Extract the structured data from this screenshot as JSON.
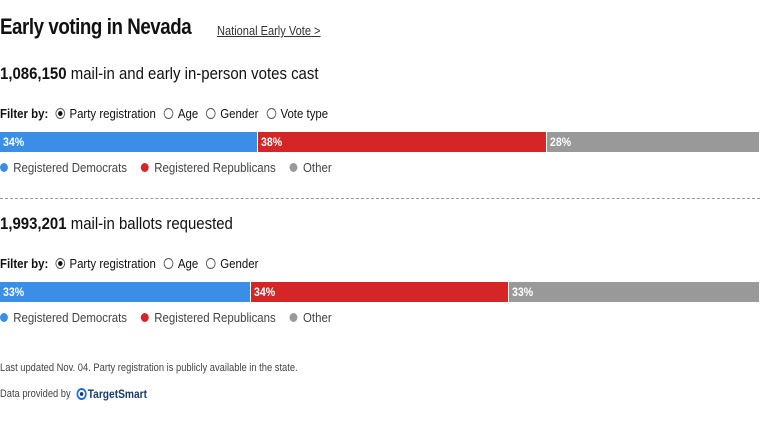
{
  "title": "Early voting in Nevada",
  "link": "National Early Vote",
  "footer": "Last updated Nov. 04. Party registration is publicly available in the state.",
  "source_prefix": "Data provided by",
  "source_logo": "TargetSmart",
  "chart_data": [
    {
      "type": "stacked-bar",
      "title": "1,086,150",
      "subtitle": "mail-in and early in-person votes cast",
      "filter_label": "Filter by:",
      "filters": [
        "Party registration",
        "Age",
        "Gender",
        "Vote type"
      ],
      "selected_filter": 0,
      "series": [
        {
          "name": "Registered Democrats",
          "color": "#3a8ee6",
          "values": [
            34
          ],
          "value_labels": [
            "34%"
          ]
        },
        {
          "name": "Registered Republicans",
          "color": "#d42626",
          "values": [
            38
          ],
          "value_labels": [
            "38%"
          ]
        },
        {
          "name": "Other",
          "color": "#999999",
          "values": [
            28
          ],
          "value_labels": [
            "28%"
          ]
        }
      ]
    },
    {
      "type": "stacked-bar",
      "title": "1,993,201",
      "subtitle": "mail-in ballots requested",
      "filter_label": "Filter by:",
      "filters": [
        "Party registration",
        "Age",
        "Gender"
      ],
      "selected_filter": 0,
      "series": [
        {
          "name": "Registered Democrats",
          "color": "#3a8ee6",
          "values": [
            33
          ],
          "value_labels": [
            "33%"
          ]
        },
        {
          "name": "Registered Republicans",
          "color": "#d42626",
          "values": [
            34
          ],
          "value_labels": [
            "34%"
          ]
        },
        {
          "name": "Other",
          "color": "#999999",
          "values": [
            33
          ],
          "value_labels": [
            "33%"
          ]
        }
      ]
    }
  ]
}
